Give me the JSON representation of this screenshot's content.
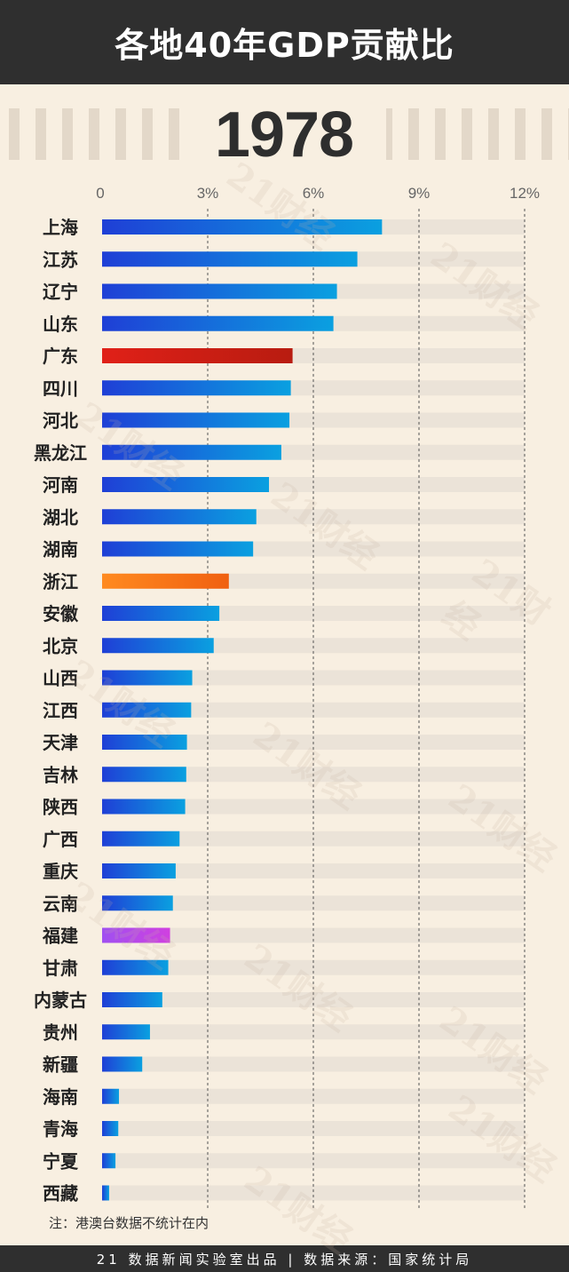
{
  "header": {
    "title": "各地40年GDP贡献比"
  },
  "year": "1978",
  "watermark": "21财经",
  "note": "注：港澳台数据不统计在内",
  "footer": {
    "text": "21 数据新闻实验室出品 | 数据来源：国家统计局"
  },
  "colors": {
    "default_bar": [
      "#1f3fd6",
      "#0aa0e0"
    ],
    "guangdong_bar": [
      "#e02018",
      "#b81c10"
    ],
    "zhejiang_bar": [
      "#ff8a20",
      "#f06010"
    ],
    "fujian_bar": [
      "#a050f0",
      "#d040e0"
    ],
    "track": "#ebe3d8"
  },
  "chart_data": {
    "type": "bar",
    "orientation": "horizontal",
    "xlim": [
      0,
      12
    ],
    "xticks": [
      "0",
      "3%",
      "6%",
      "9%",
      "12%"
    ],
    "grid": "vertical dashed",
    "categories": [
      "上海",
      "江苏",
      "辽宁",
      "山东",
      "广东",
      "四川",
      "河北",
      "黑龙江",
      "河南",
      "湖北",
      "湖南",
      "浙江",
      "安徽",
      "北京",
      "山西",
      "江西",
      "天津",
      "吉林",
      "陕西",
      "广西",
      "重庆",
      "云南",
      "福建",
      "甘肃",
      "内蒙古",
      "贵州",
      "新疆",
      "海南",
      "青海",
      "宁夏",
      "西藏"
    ],
    "values": [
      7.95,
      7.25,
      6.67,
      6.57,
      5.41,
      5.36,
      5.32,
      5.09,
      4.74,
      4.38,
      4.29,
      3.6,
      3.33,
      3.17,
      2.56,
      2.53,
      2.41,
      2.39,
      2.36,
      2.2,
      2.09,
      2.01,
      1.93,
      1.88,
      1.71,
      1.36,
      1.14,
      0.48,
      0.46,
      0.38,
      0.2
    ],
    "highlight": {
      "广东": "guangdong_bar",
      "浙江": "zhejiang_bar",
      "福建": "fujian_bar"
    }
  }
}
